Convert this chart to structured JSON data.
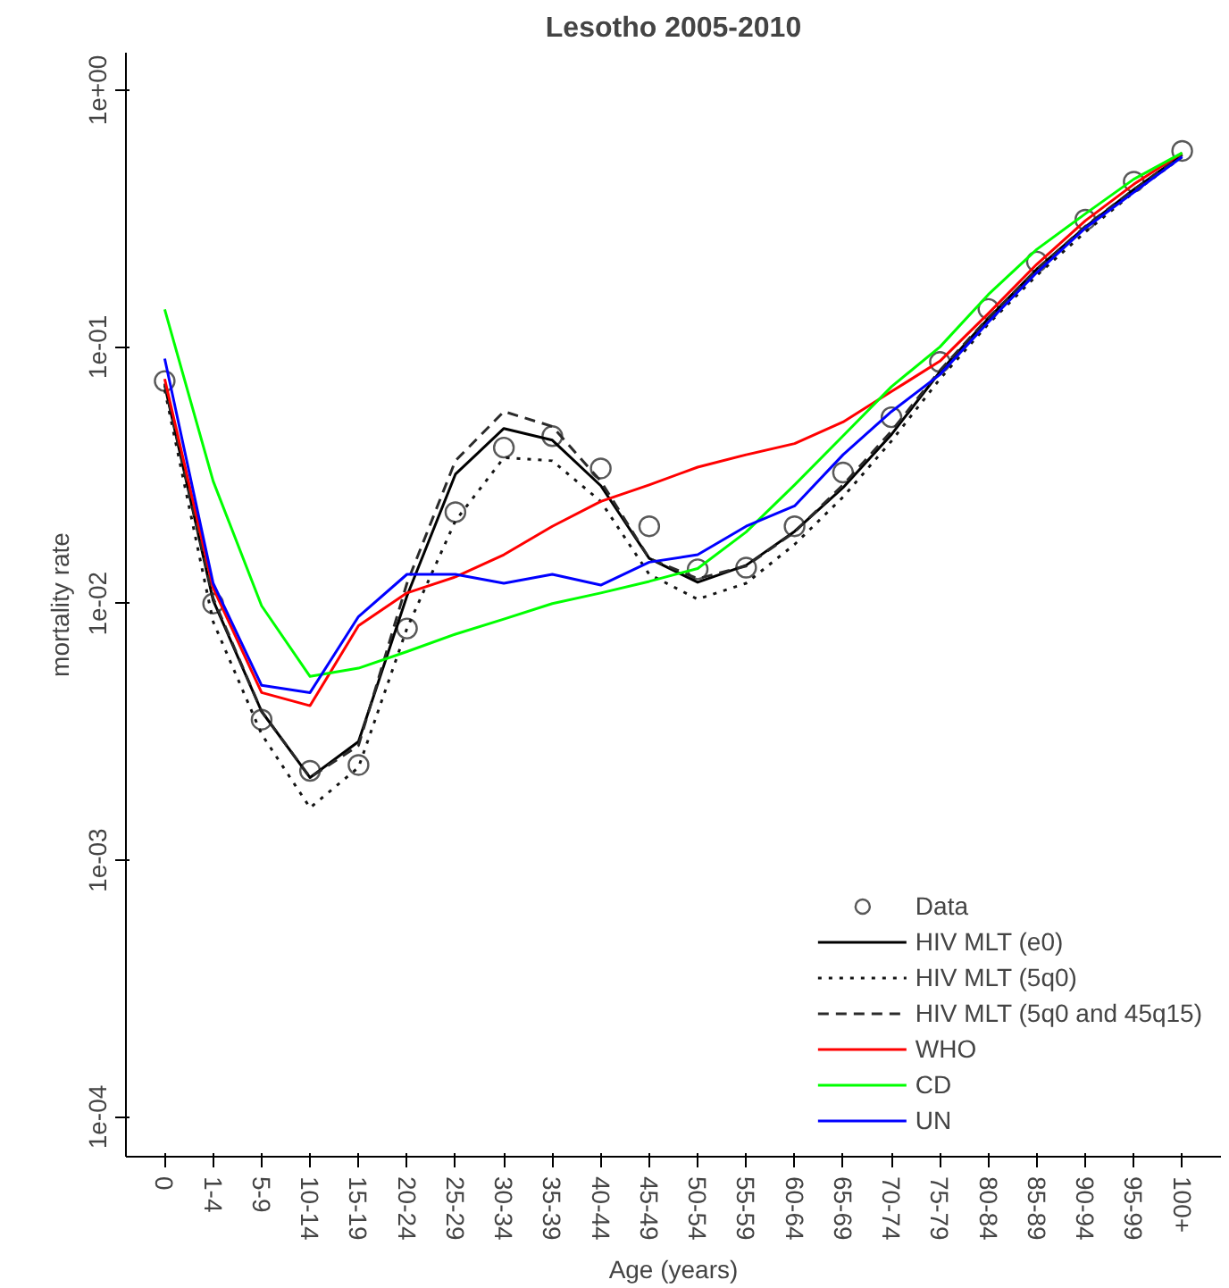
{
  "chart_data": {
    "type": "line",
    "title": "Lesotho 2005-2010",
    "xlabel": "Age (years)",
    "ylabel": "mortality rate",
    "categories": [
      "0",
      "1-4",
      "5-9",
      "10-14",
      "15-19",
      "20-24",
      "25-29",
      "30-34",
      "35-39",
      "40-44",
      "45-49",
      "50-54",
      "55-59",
      "60-64",
      "65-69",
      "70-74",
      "75-79",
      "80-84",
      "85-89",
      "90-94",
      "95-99",
      "100+"
    ],
    "log": "y",
    "ylim": [
      7e-05,
      1.4
    ],
    "yticks": [
      {
        "value": 0.0001,
        "label": "1e-04"
      },
      {
        "value": 0.001,
        "label": "1e-03"
      },
      {
        "value": 0.01,
        "label": "1e-02"
      },
      {
        "value": 0.1,
        "label": "1e-01"
      },
      {
        "value": 1,
        "label": "1e+00"
      }
    ],
    "grid": false,
    "legend": "bottom right",
    "series": [
      {
        "name": "Data",
        "type": "scatter",
        "marker": "circle",
        "color": "#595959",
        "values": [
          0.0736,
          0.01,
          0.00353,
          0.00223,
          0.00235,
          0.008,
          0.0227,
          0.0405,
          0.0449,
          0.0336,
          0.02,
          0.0136,
          0.0138,
          0.02,
          0.0324,
          0.0532,
          0.0873,
          0.1406,
          0.215,
          0.313,
          0.44,
          0.58
        ]
      },
      {
        "name": "HIV MLT (e0)",
        "line_style": "solid",
        "color": "#000000",
        "values": [
          0.071,
          0.0103,
          0.0038,
          0.0021,
          0.0029,
          0.0107,
          0.0319,
          0.0481,
          0.0433,
          0.0288,
          0.015,
          0.0121,
          0.0141,
          0.0191,
          0.0283,
          0.0456,
          0.08,
          0.129,
          0.201,
          0.293,
          0.41,
          0.56
        ]
      },
      {
        "name": "HIV MLT (5q0)",
        "line_style": "dotted",
        "color": "#141414",
        "values": [
          0.068,
          0.0085,
          0.0031,
          0.0016,
          0.0023,
          0.008,
          0.021,
          0.037,
          0.036,
          0.025,
          0.013,
          0.0104,
          0.012,
          0.017,
          0.026,
          0.043,
          0.075,
          0.123,
          0.19,
          0.28,
          0.4,
          0.55
        ]
      },
      {
        "name": "HIV MLT (5q0 and 45q15)",
        "line_style": "dashed",
        "color": "#2a2a2a",
        "values": [
          0.072,
          0.0105,
          0.0038,
          0.0021,
          0.0028,
          0.012,
          0.036,
          0.056,
          0.049,
          0.03,
          0.015,
          0.0125,
          0.014,
          0.019,
          0.029,
          0.047,
          0.081,
          0.13,
          0.2,
          0.295,
          0.41,
          0.56
        ]
      },
      {
        "name": "WHO",
        "line_style": "solid",
        "color": "#ff0000",
        "values": [
          0.075,
          0.0115,
          0.0045,
          0.004,
          0.0082,
          0.011,
          0.0127,
          0.0155,
          0.02,
          0.025,
          0.029,
          0.034,
          0.038,
          0.042,
          0.051,
          0.067,
          0.088,
          0.135,
          0.21,
          0.31,
          0.43,
          0.57
        ]
      },
      {
        "name": "CD",
        "line_style": "solid",
        "color": "#00ff00",
        "values": [
          0.14,
          0.03,
          0.0098,
          0.0052,
          0.0056,
          0.0065,
          0.0076,
          0.0087,
          0.01,
          0.011,
          0.0122,
          0.0137,
          0.019,
          0.029,
          0.045,
          0.07,
          0.1,
          0.16,
          0.24,
          0.33,
          0.45,
          0.57
        ]
      },
      {
        "name": "UN",
        "line_style": "solid",
        "color": "#0000ff",
        "values": [
          0.09,
          0.012,
          0.0048,
          0.0045,
          0.0089,
          0.013,
          0.013,
          0.012,
          0.013,
          0.0118,
          0.0145,
          0.0155,
          0.02,
          0.024,
          0.038,
          0.056,
          0.078,
          0.125,
          0.195,
          0.29,
          0.4,
          0.55
        ]
      }
    ]
  }
}
